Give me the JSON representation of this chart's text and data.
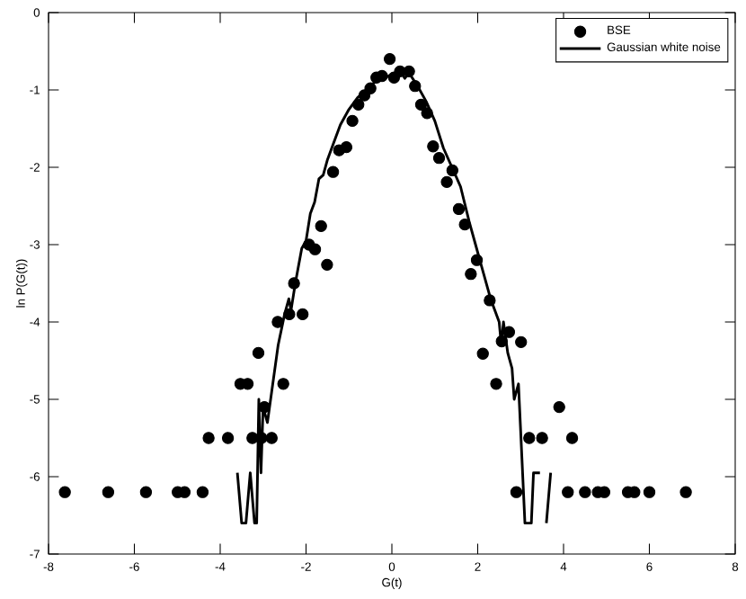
{
  "chart_data": {
    "type": "scatter",
    "xlabel": "G(t)",
    "ylabel": "ln P(G(t))",
    "xlim": [
      -8,
      8
    ],
    "ylim": [
      -7,
      0
    ],
    "xticks": [
      -8,
      -6,
      -4,
      -2,
      0,
      2,
      4,
      6,
      8
    ],
    "yticks": [
      -7,
      -6,
      -5,
      -4,
      -3,
      -2,
      -1,
      0
    ],
    "legend": "top right",
    "grid": false,
    "series": [
      {
        "name": "BSE",
        "type": "scatter",
        "marker": "circle",
        "color": "#000000",
        "x": [
          -7.62,
          -6.61,
          -5.73,
          -4.99,
          -4.83,
          -4.41,
          -4.27,
          -3.82,
          -3.53,
          -3.36,
          -3.25,
          -3.11,
          -3.04,
          -2.97,
          -2.8,
          -2.66,
          -2.53,
          -2.39,
          -2.28,
          -2.08,
          -1.93,
          -1.79,
          -1.65,
          -1.51,
          -1.37,
          -1.23,
          -1.06,
          -0.92,
          -0.78,
          -0.64,
          -0.5,
          -0.36,
          -0.23,
          -0.05,
          0.05,
          0.19,
          0.4,
          0.54,
          0.68,
          0.82,
          0.96,
          1.1,
          1.28,
          1.41,
          1.56,
          1.7,
          1.84,
          1.98,
          2.12,
          2.28,
          2.43,
          2.56,
          2.73,
          2.9,
          3.01,
          3.2,
          3.5,
          3.9,
          4.1,
          4.2,
          4.5,
          4.8,
          4.95,
          5.5,
          5.65,
          6.0,
          6.85
        ],
        "values": [
          -6.2,
          -6.2,
          -6.2,
          -6.2,
          -6.2,
          -6.2,
          -5.5,
          -5.5,
          -4.8,
          -4.8,
          -5.5,
          -4.4,
          -5.5,
          -5.1,
          -5.5,
          -4.0,
          -4.8,
          -3.9,
          -3.5,
          -3.9,
          -3.0,
          -3.06,
          -2.76,
          -3.26,
          -2.06,
          -1.78,
          -1.74,
          -1.4,
          -1.19,
          -1.07,
          -0.98,
          -0.84,
          -0.82,
          -0.6,
          -0.84,
          -0.76,
          -0.76,
          -0.95,
          -1.19,
          -1.3,
          -1.73,
          -1.88,
          -2.19,
          -2.04,
          -2.54,
          -2.74,
          -3.38,
          -3.2,
          -4.41,
          -3.72,
          -4.8,
          -4.25,
          -4.13,
          -6.2,
          -4.26,
          -5.5,
          -5.5,
          -5.1,
          -6.2,
          -5.5,
          -6.2,
          -6.2,
          -6.2,
          -6.2,
          -6.2,
          -6.2,
          -6.2
        ]
      },
      {
        "name": "Gaussian white noise",
        "type": "line",
        "marker": "none",
        "line_style": "solid",
        "color": "#000000",
        "x": [
          -3.6,
          -3.5,
          -3.4,
          -3.3,
          -3.2,
          -3.15,
          -3.1,
          -3.05,
          -3.0,
          -2.9,
          -2.8,
          -2.65,
          -2.5,
          -2.4,
          -2.35,
          -2.25,
          -2.1,
          -2.0,
          -1.9,
          -1.8,
          -1.7,
          -1.6,
          -1.5,
          -1.4,
          -1.3,
          -1.2,
          -1.0,
          -0.8,
          -0.6,
          -0.4,
          -0.2,
          0,
          0.1,
          0.2,
          0.3,
          0.4,
          0.6,
          0.8,
          1.0,
          1.2,
          1.4,
          1.6,
          1.8,
          1.95,
          2.1,
          2.3,
          2.5,
          2.55,
          2.6,
          2.7,
          2.8,
          2.85,
          2.95,
          3.0,
          3.1,
          3.25,
          3.3,
          3.45,
          3.55,
          3.6,
          3.7
        ],
        "values": [
          -5.95,
          -6.6,
          -6.6,
          -5.95,
          -6.6,
          -6.6,
          -5.0,
          -5.95,
          -5.1,
          -5.3,
          -4.9,
          -4.3,
          -3.9,
          -3.7,
          -3.85,
          -3.5,
          -3.05,
          -2.95,
          -2.6,
          -2.45,
          -2.15,
          -2.1,
          -1.9,
          -1.75,
          -1.6,
          -1.45,
          -1.25,
          -1.1,
          -1.0,
          -0.9,
          -0.85,
          -0.8,
          -0.85,
          -0.75,
          -0.85,
          -0.78,
          -0.95,
          -1.15,
          -1.4,
          -1.75,
          -2.0,
          -2.25,
          -2.7,
          -3.0,
          -3.3,
          -3.7,
          -4.0,
          -4.3,
          -4.0,
          -4.4,
          -4.6,
          -5.0,
          -4.8,
          -5.4,
          -6.6,
          -6.6,
          -5.95,
          -5.95,
          null,
          -6.6,
          -5.95
        ]
      }
    ]
  }
}
